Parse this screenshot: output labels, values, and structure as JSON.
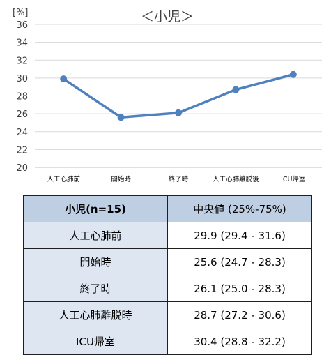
{
  "chart_data": {
    "type": "line",
    "title": "＜小児＞",
    "ylabel": "[%]",
    "xlabel": "",
    "ylim": [
      20,
      36
    ],
    "yticks": [
      20,
      22,
      24,
      26,
      28,
      30,
      32,
      34,
      36
    ],
    "grid": true,
    "categories": [
      "人工心肺前",
      "開始時",
      "終了時",
      "人工心肺離脱後",
      "ICU帰室"
    ],
    "values": [
      29.9,
      25.6,
      26.1,
      28.7,
      30.4
    ],
    "color": "#4f81bd"
  },
  "table": {
    "header": {
      "label": "小児(n=15)",
      "value": "中央値 (25%-75%)"
    },
    "rows": [
      {
        "label": "人工心肺前",
        "value": "29.9 (29.4 - 31.6)"
      },
      {
        "label": "開始時",
        "value": "25.6 (24.7 - 28.3)"
      },
      {
        "label": "終了時",
        "value": "26.1 (25.0 - 28.3)"
      },
      {
        "label": "人工心肺離脱時",
        "value": "28.7 (27.2 - 30.6)"
      },
      {
        "label": "ICU帰室",
        "value": "30.4 (28.8 - 32.2)"
      }
    ]
  }
}
